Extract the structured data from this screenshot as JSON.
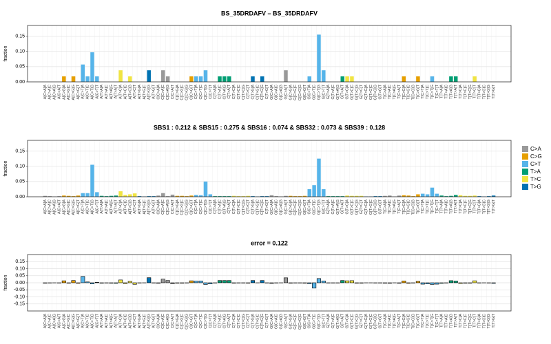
{
  "chart_data": [
    {
      "type": "bar",
      "title": "BS_35DRDAFV – BS_35DRDAFV",
      "ylabel": "fraction",
      "categories": [
        "A[C>A]A",
        "A[C>A]C",
        "A[C>A]G",
        "A[C>A]T",
        "A[C>G]A",
        "A[C>G]C",
        "A[C>G]G",
        "A[C>G]T",
        "A[C>T]A",
        "A[C>T]C",
        "A[C>T]G",
        "A[C>T]T",
        "A[T>A]A",
        "A[T>A]C",
        "A[T>A]G",
        "A[T>A]T",
        "A[T>C]A",
        "A[T>C]C",
        "A[T>C]G",
        "A[T>C]T",
        "A[T>G]A",
        "A[T>G]C",
        "A[T>G]G",
        "A[T>G]T",
        "C[C>A]A",
        "C[C>A]C",
        "C[C>A]G",
        "C[C>A]T",
        "C[C>G]A",
        "C[C>G]C",
        "C[C>G]G",
        "C[C>G]T",
        "C[C>T]A",
        "C[C>T]C",
        "C[C>T]G",
        "C[C>T]T",
        "C[T>A]A",
        "C[T>A]C",
        "C[T>A]G",
        "C[T>A]T",
        "C[T>C]A",
        "C[T>C]C",
        "C[T>C]G",
        "C[T>C]T",
        "C[T>G]A",
        "C[T>G]C",
        "C[T>G]G",
        "C[T>G]T",
        "G[C>A]A",
        "G[C>A]C",
        "G[C>A]G",
        "G[C>A]T",
        "G[C>G]A",
        "G[C>G]C",
        "G[C>G]G",
        "G[C>G]T",
        "G[C>T]A",
        "G[C>T]C",
        "G[C>T]G",
        "G[C>T]T",
        "G[T>A]A",
        "G[T>A]C",
        "G[T>A]G",
        "G[T>A]T",
        "G[T>C]A",
        "G[T>C]C",
        "G[T>C]G",
        "G[T>C]T",
        "G[T>G]A",
        "G[T>G]C",
        "G[T>G]G",
        "G[T>G]T",
        "T[C>A]A",
        "T[C>A]C",
        "T[C>A]G",
        "T[C>A]T",
        "T[C>G]A",
        "T[C>G]C",
        "T[C>G]G",
        "T[C>G]T",
        "T[C>T]A",
        "T[C>T]C",
        "T[C>T]G",
        "T[C>T]T",
        "T[T>A]A",
        "T[T>A]C",
        "T[T>A]G",
        "T[T>A]T",
        "T[T>C]A",
        "T[T>C]C",
        "T[T>C]G",
        "T[T>C]T",
        "T[T>G]A",
        "T[T>G]C",
        "T[T>G]G",
        "T[T>G]T"
      ],
      "values": [
        0,
        0,
        0,
        0,
        0.018,
        0,
        0.018,
        0,
        0.057,
        0.018,
        0.097,
        0.018,
        0,
        0,
        0,
        0,
        0.038,
        0,
        0.018,
        0,
        0,
        0,
        0.038,
        0,
        0,
        0.038,
        0.018,
        0,
        0,
        0,
        0,
        0.018,
        0.018,
        0.018,
        0.038,
        0,
        0,
        0.018,
        0.018,
        0.018,
        0,
        0,
        0,
        0,
        0.018,
        0,
        0.018,
        0,
        0,
        0,
        0,
        0.038,
        0,
        0,
        0,
        0,
        0.018,
        0,
        0.155,
        0.038,
        0,
        0,
        0,
        0.018,
        0.018,
        0.018,
        0,
        0,
        0,
        0,
        0,
        0,
        0,
        0,
        0,
        0,
        0.018,
        0,
        0,
        0.018,
        0,
        0,
        0.018,
        0,
        0,
        0,
        0.018,
        0.018,
        0,
        0,
        0,
        0.018,
        0,
        0,
        0,
        0
      ],
      "ylim": [
        0,
        0.185
      ],
      "yticks": [
        {
          "value": 0,
          "label": "0.00"
        },
        0.05,
        {
          "value": 0.1,
          "label": "0.10"
        },
        0.15
      ],
      "grid": true
    },
    {
      "type": "bar",
      "title": "SBS1 : 0.212 & SBS15 : 0.275 & SBS16 : 0.074 & SBS32 : 0.073 & SBS39 : 0.128",
      "ylabel": "fraction",
      "categories": [
        "A[C>A]A",
        "A[C>A]C",
        "A[C>A]G",
        "A[C>A]T",
        "A[C>G]A",
        "A[C>G]C",
        "A[C>G]G",
        "A[C>G]T",
        "A[C>T]A",
        "A[C>T]C",
        "A[C>T]G",
        "A[C>T]T",
        "A[T>A]A",
        "A[T>A]C",
        "A[T>A]G",
        "A[T>A]T",
        "A[T>C]A",
        "A[T>C]C",
        "A[T>C]G",
        "A[T>C]T",
        "A[T>G]A",
        "A[T>G]C",
        "A[T>G]G",
        "A[T>G]T",
        "C[C>A]A",
        "C[C>A]C",
        "C[C>A]G",
        "C[C>A]T",
        "C[C>G]A",
        "C[C>G]C",
        "C[C>G]G",
        "C[C>G]T",
        "C[C>T]A",
        "C[C>T]C",
        "C[C>T]G",
        "C[C>T]T",
        "C[T>A]A",
        "C[T>A]C",
        "C[T>A]G",
        "C[T>A]T",
        "C[T>C]A",
        "C[T>C]C",
        "C[T>C]G",
        "C[T>C]T",
        "C[T>G]A",
        "C[T>G]C",
        "C[T>G]G",
        "C[T>G]T",
        "G[C>A]A",
        "G[C>A]C",
        "G[C>A]G",
        "G[C>A]T",
        "G[C>G]A",
        "G[C>G]C",
        "G[C>G]G",
        "G[C>G]T",
        "G[C>T]A",
        "G[C>T]C",
        "G[C>T]G",
        "G[C>T]T",
        "G[T>A]A",
        "G[T>A]C",
        "G[T>A]G",
        "G[T>A]T",
        "G[T>C]A",
        "G[T>C]C",
        "G[T>C]G",
        "G[T>C]T",
        "G[T>G]A",
        "G[T>G]C",
        "G[T>G]G",
        "G[T>G]T",
        "T[C>A]A",
        "T[C>A]C",
        "T[C>A]G",
        "T[C>A]T",
        "T[C>G]A",
        "T[C>G]C",
        "T[C>G]G",
        "T[C>G]T",
        "T[C>T]A",
        "T[C>T]C",
        "T[C>T]G",
        "T[C>T]T",
        "T[T>A]A",
        "T[T>A]C",
        "T[T>A]G",
        "T[T>A]T",
        "T[T>C]A",
        "T[T>C]C",
        "T[T>C]G",
        "T[T>C]T",
        "T[T>G]A",
        "T[T>G]C",
        "T[T>G]G",
        "T[T>G]T"
      ],
      "values": [
        0.003,
        0.002,
        0.001,
        0.002,
        0.004,
        0.003,
        0.002,
        0.004,
        0.012,
        0.012,
        0.105,
        0.015,
        0.003,
        0.002,
        0.003,
        0.004,
        0.018,
        0.006,
        0.008,
        0.011,
        0.002,
        0.001,
        0.002,
        0.002,
        0.004,
        0.012,
        0.002,
        0.007,
        0.003,
        0.003,
        0.002,
        0.004,
        0.006,
        0.005,
        0.05,
        0.008,
        0.002,
        0.002,
        0.002,
        0.002,
        0.003,
        0.002,
        0.002,
        0.003,
        0.002,
        0.001,
        0.002,
        0.002,
        0.005,
        0.002,
        0.001,
        0.003,
        0.003,
        0.002,
        0.002,
        0.003,
        0.025,
        0.038,
        0.125,
        0.025,
        0.002,
        0.002,
        0.002,
        0.002,
        0.004,
        0.003,
        0.003,
        0.003,
        0.001,
        0.001,
        0.002,
        0.002,
        0.003,
        0.004,
        0.001,
        0.004,
        0.005,
        0.004,
        0.002,
        0.008,
        0.01,
        0.008,
        0.03,
        0.01,
        0.004,
        0.002,
        0.003,
        0.006,
        0.005,
        0.003,
        0.003,
        0.004,
        0.002,
        0.001,
        0.002,
        0.004
      ],
      "ylim": [
        0,
        0.185
      ],
      "yticks": [
        {
          "value": 0,
          "label": "0.00"
        },
        0.05,
        {
          "value": 0.1,
          "label": "0.10"
        },
        0.15
      ],
      "grid": true,
      "legend": {
        "position": "right",
        "items": [
          {
            "name": "C>A",
            "color": "#999999"
          },
          {
            "name": "C>G",
            "color": "#e69f00"
          },
          {
            "name": "C>T",
            "color": "#56b4e9"
          },
          {
            "name": "T>A",
            "color": "#009e73"
          },
          {
            "name": "T>C",
            "color": "#f0e442"
          },
          {
            "name": "T>G",
            "color": "#0072b2"
          }
        ]
      }
    },
    {
      "type": "bar",
      "title": "error = 0.122",
      "ylabel": "fraction",
      "edgecolor": "#000000",
      "categories": [
        "A[C>A]A",
        "A[C>A]C",
        "A[C>A]G",
        "A[C>A]T",
        "A[C>G]A",
        "A[C>G]C",
        "A[C>G]G",
        "A[C>G]T",
        "A[C>T]A",
        "A[C>T]C",
        "A[C>T]G",
        "A[C>T]T",
        "A[T>A]A",
        "A[T>A]C",
        "A[T>A]G",
        "A[T>A]T",
        "A[T>C]A",
        "A[T>C]C",
        "A[T>C]G",
        "A[T>C]T",
        "A[T>G]A",
        "A[T>G]C",
        "A[T>G]G",
        "A[T>G]T",
        "C[C>A]A",
        "C[C>A]C",
        "C[C>A]G",
        "C[C>A]T",
        "C[C>G]A",
        "C[C>G]C",
        "C[C>G]G",
        "C[C>G]T",
        "C[C>T]A",
        "C[C>T]C",
        "C[C>T]G",
        "C[C>T]T",
        "C[T>A]A",
        "C[T>A]C",
        "C[T>A]G",
        "C[T>A]T",
        "C[T>C]A",
        "C[T>C]C",
        "C[T>C]G",
        "C[T>C]T",
        "C[T>G]A",
        "C[T>G]C",
        "C[T>G]G",
        "C[T>G]T",
        "G[C>A]A",
        "G[C>A]C",
        "G[C>A]G",
        "G[C>A]T",
        "G[C>G]A",
        "G[C>G]C",
        "G[C>G]G",
        "G[C>G]T",
        "G[C>T]A",
        "G[C>T]C",
        "G[C>T]G",
        "G[C>T]T",
        "G[T>A]A",
        "G[T>A]C",
        "G[T>A]G",
        "G[T>A]T",
        "G[T>C]A",
        "G[T>C]C",
        "G[T>C]G",
        "G[T>C]T",
        "G[T>G]A",
        "G[T>G]C",
        "G[T>G]G",
        "G[T>G]T",
        "T[C>A]A",
        "T[C>A]C",
        "T[C>A]G",
        "T[C>A]T",
        "T[C>G]A",
        "T[C>G]C",
        "T[C>G]G",
        "T[C>G]T",
        "T[C>T]A",
        "T[C>T]C",
        "T[C>T]G",
        "T[C>T]T",
        "T[T>A]A",
        "T[T>A]C",
        "T[T>A]G",
        "T[T>A]T",
        "T[T>C]A",
        "T[T>C]C",
        "T[T>C]G",
        "T[T>C]T",
        "T[T>G]A",
        "T[T>G]C",
        "T[T>G]G",
        "T[T>G]T"
      ],
      "values": [
        -0.003,
        -0.002,
        -0.001,
        -0.002,
        0.014,
        -0.003,
        0.016,
        -0.004,
        0.045,
        0.006,
        -0.008,
        0.003,
        -0.003,
        -0.002,
        -0.003,
        -0.004,
        0.02,
        -0.006,
        0.01,
        -0.011,
        -0.002,
        -0.001,
        0.036,
        -0.002,
        -0.004,
        0.026,
        0.016,
        -0.007,
        -0.003,
        -0.003,
        -0.002,
        0.014,
        0.012,
        0.013,
        -0.012,
        -0.008,
        -0.002,
        0.016,
        0.016,
        0.016,
        -0.003,
        -0.002,
        -0.002,
        -0.003,
        0.016,
        -0.001,
        0.016,
        -0.002,
        -0.005,
        -0.002,
        -0.001,
        0.035,
        -0.003,
        -0.002,
        -0.002,
        -0.003,
        -0.007,
        -0.038,
        0.03,
        0.013,
        -0.002,
        -0.002,
        -0.002,
        0.016,
        0.014,
        0.015,
        -0.003,
        -0.003,
        -0.001,
        -0.001,
        -0.002,
        -0.002,
        -0.003,
        -0.004,
        -0.001,
        -0.004,
        0.013,
        -0.004,
        -0.002,
        0.01,
        -0.01,
        -0.008,
        -0.012,
        -0.01,
        -0.004,
        -0.002,
        0.015,
        0.012,
        -0.005,
        -0.003,
        -0.003,
        0.014,
        -0.002,
        -0.001,
        -0.002,
        -0.004
      ],
      "ylim": [
        -0.2,
        0.2
      ],
      "yticks": [
        -0.15,
        {
          "value": -0.1,
          "label": "-0.10"
        },
        -0.05,
        {
          "value": 0,
          "label": "0.00"
        },
        0.05,
        {
          "value": 0.1,
          "label": "0.10"
        },
        0.15
      ],
      "grid": true
    }
  ]
}
